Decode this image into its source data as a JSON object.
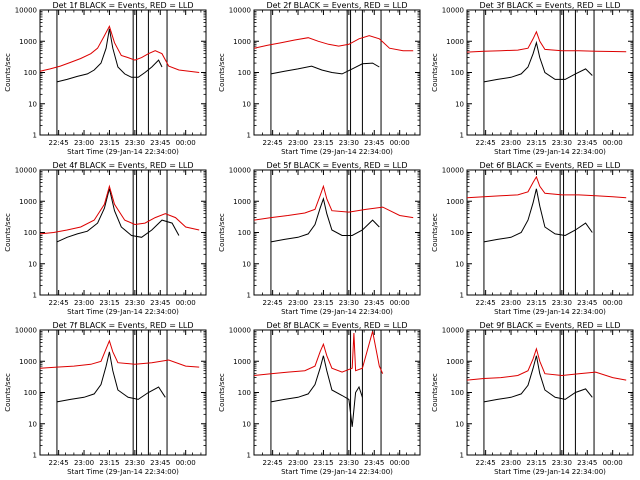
{
  "colors": {
    "events": "#000000",
    "lld": "#dd0000",
    "axes": "#000000"
  },
  "chart_data": [
    {
      "type": "line",
      "title": "Det 1f BLACK = Events, RED = LLD",
      "xlabel": "Start Time (29-Jan-14 22:34:00)",
      "ylabel": "Counts/sec",
      "yscale": "log",
      "ylim": [
        1,
        10000
      ],
      "xlim": [
        "22:34",
        "00:12"
      ],
      "xticks": [
        "22:45",
        "23:00",
        "23:15",
        "23:30",
        "23:45",
        "00:00"
      ],
      "yticks": [
        "1",
        "10",
        "100",
        "1000",
        "10000"
      ],
      "vlines": [
        "22:44",
        "23:29",
        "23:31",
        "23:38",
        "23:49"
      ],
      "series": [
        {
          "name": "Events",
          "color": "#000000",
          "x": [
            "22:44",
            "22:50",
            "22:56",
            "23:02",
            "23:06",
            "23:10",
            "23:13",
            "23:15",
            "23:17",
            "23:20",
            "23:24",
            "23:28",
            "23:32",
            "23:36",
            "23:40",
            "23:44",
            "23:46"
          ],
          "y": [
            50,
            60,
            75,
            90,
            120,
            200,
            600,
            2500,
            600,
            150,
            90,
            70,
            70,
            100,
            150,
            250,
            150
          ]
        },
        {
          "name": "LLD",
          "color": "#dd0000",
          "x": [
            "22:34",
            "22:40",
            "22:46",
            "22:52",
            "22:58",
            "23:04",
            "23:08",
            "23:12",
            "23:15",
            "23:18",
            "23:22",
            "23:26",
            "23:30",
            "23:34",
            "23:38",
            "23:42",
            "23:46",
            "23:50",
            "23:56",
            "00:02",
            "00:08"
          ],
          "y": [
            110,
            130,
            160,
            210,
            280,
            400,
            600,
            1500,
            3000,
            900,
            350,
            300,
            250,
            300,
            400,
            500,
            400,
            160,
            120,
            110,
            100
          ]
        }
      ]
    },
    {
      "type": "line",
      "title": "Det 2f BLACK = Events, RED = LLD",
      "xlabel": "Start Time (29-Jan-14 22:34:00)",
      "ylabel": "Counts/sec",
      "yscale": "log",
      "ylim": [
        1,
        10000
      ],
      "xlim": [
        "22:34",
        "00:12"
      ],
      "xticks": [
        "22:45",
        "23:00",
        "23:15",
        "23:30",
        "23:45",
        "00:00"
      ],
      "yticks": [
        "1",
        "10",
        "100",
        "1000",
        "10000"
      ],
      "vlines": [
        "22:44",
        "23:29",
        "23:31",
        "23:38",
        "23:49"
      ],
      "series": [
        {
          "name": "Events",
          "color": "#000000",
          "x": [
            "22:44",
            "22:52",
            "23:00",
            "23:08",
            "23:14",
            "23:20",
            "23:26",
            "23:32",
            "23:38",
            "23:44",
            "23:48"
          ],
          "y": [
            90,
            110,
            130,
            160,
            120,
            100,
            90,
            130,
            190,
            200,
            150
          ]
        },
        {
          "name": "LLD",
          "color": "#dd0000",
          "x": [
            "22:34",
            "22:42",
            "22:50",
            "22:58",
            "23:06",
            "23:12",
            "23:18",
            "23:24",
            "23:30",
            "23:36",
            "23:42",
            "23:48",
            "23:54",
            "00:02",
            "00:08"
          ],
          "y": [
            600,
            750,
            900,
            1100,
            1300,
            1000,
            800,
            700,
            800,
            1200,
            1500,
            1200,
            600,
            500,
            500
          ]
        }
      ]
    },
    {
      "type": "line",
      "title": "Det 3f BLACK = Events, RED = LLD",
      "xlabel": "Start Time (29-Jan-14 22:34:00)",
      "ylabel": "Counts/sec",
      "yscale": "log",
      "ylim": [
        1,
        10000
      ],
      "xlim": [
        "22:34",
        "00:12"
      ],
      "xticks": [
        "22:45",
        "23:00",
        "23:15",
        "23:30",
        "23:45",
        "00:00"
      ],
      "yticks": [
        "1",
        "10",
        "100",
        "1000",
        "10000"
      ],
      "vlines": [
        "22:44",
        "23:29",
        "23:31",
        "23:38",
        "23:49"
      ],
      "series": [
        {
          "name": "Events",
          "color": "#000000",
          "x": [
            "22:44",
            "22:52",
            "23:00",
            "23:06",
            "23:10",
            "23:13",
            "23:15",
            "23:17",
            "23:20",
            "23:26",
            "23:32",
            "23:38",
            "23:44",
            "23:48"
          ],
          "y": [
            50,
            60,
            70,
            90,
            150,
            400,
            900,
            300,
            100,
            60,
            60,
            90,
            130,
            80
          ]
        },
        {
          "name": "LLD",
          "color": "#dd0000",
          "x": [
            "22:34",
            "22:44",
            "22:54",
            "23:04",
            "23:10",
            "23:13",
            "23:15",
            "23:17",
            "23:20",
            "23:30",
            "23:40",
            "23:50",
            "00:00",
            "00:08"
          ],
          "y": [
            450,
            480,
            500,
            520,
            600,
            1200,
            2000,
            1000,
            550,
            500,
            500,
            480,
            470,
            460
          ]
        }
      ]
    },
    {
      "type": "line",
      "title": "Det 4f BLACK = Events, RED = LLD",
      "xlabel": "Start Time (29-Jan-14 22:34:00)",
      "ylabel": "Counts/sec",
      "yscale": "log",
      "ylim": [
        1,
        10000
      ],
      "xlim": [
        "22:34",
        "00:12"
      ],
      "xticks": [
        "22:45",
        "23:00",
        "23:15",
        "23:30",
        "23:45",
        "00:00"
      ],
      "yticks": [
        "1",
        "10",
        "100",
        "1000",
        "10000"
      ],
      "vlines": [
        "22:44",
        "23:29",
        "23:31",
        "23:38",
        "23:49"
      ],
      "series": [
        {
          "name": "Events",
          "color": "#000000",
          "x": [
            "22:44",
            "22:50",
            "22:56",
            "23:02",
            "23:08",
            "23:12",
            "23:15",
            "23:18",
            "23:22",
            "23:28",
            "23:34",
            "23:40",
            "23:46",
            "23:52",
            "23:56"
          ],
          "y": [
            50,
            70,
            90,
            110,
            200,
            600,
            2500,
            500,
            150,
            80,
            70,
            120,
            250,
            200,
            80
          ]
        },
        {
          "name": "LLD",
          "color": "#dd0000",
          "x": [
            "22:34",
            "22:42",
            "22:50",
            "22:58",
            "23:06",
            "23:12",
            "23:15",
            "23:18",
            "23:24",
            "23:30",
            "23:36",
            "23:42",
            "23:48",
            "23:54",
            "00:00",
            "00:08"
          ],
          "y": [
            90,
            100,
            120,
            150,
            250,
            800,
            3000,
            800,
            250,
            180,
            200,
            300,
            400,
            300,
            150,
            120
          ]
        }
      ]
    },
    {
      "type": "line",
      "title": "Det 5f BLACK = Events, RED = LLD",
      "xlabel": "Start Time (29-Jan-14 22:34:00)",
      "ylabel": "Counts/sec",
      "yscale": "log",
      "ylim": [
        1,
        10000
      ],
      "xlim": [
        "22:34",
        "00:12"
      ],
      "xticks": [
        "22:45",
        "23:00",
        "23:15",
        "23:30",
        "23:45",
        "00:00"
      ],
      "yticks": [
        "1",
        "10",
        "100",
        "1000",
        "10000"
      ],
      "vlines": [
        "22:44",
        "23:29",
        "23:31",
        "23:38",
        "23:49"
      ],
      "series": [
        {
          "name": "Events",
          "color": "#000000",
          "x": [
            "22:44",
            "22:52",
            "23:00",
            "23:06",
            "23:10",
            "23:13",
            "23:15",
            "23:17",
            "23:20",
            "23:26",
            "23:32",
            "23:38",
            "23:44",
            "23:48"
          ],
          "y": [
            50,
            60,
            70,
            90,
            180,
            600,
            1200,
            400,
            120,
            80,
            80,
            120,
            250,
            150
          ]
        },
        {
          "name": "LLD",
          "color": "#dd0000",
          "x": [
            "22:34",
            "22:44",
            "22:54",
            "23:04",
            "23:10",
            "23:13",
            "23:15",
            "23:17",
            "23:20",
            "23:30",
            "23:40",
            "23:50",
            "00:00",
            "00:08"
          ],
          "y": [
            250,
            300,
            350,
            420,
            550,
            1500,
            3000,
            1200,
            500,
            450,
            550,
            650,
            350,
            300
          ]
        }
      ]
    },
    {
      "type": "line",
      "title": "Det 6f BLACK = Events, RED = LLD",
      "xlabel": "Start Time (29-Jan-14 22:34:00)",
      "ylabel": "Counts/sec",
      "yscale": "log",
      "ylim": [
        1,
        10000
      ],
      "xlim": [
        "22:34",
        "00:12"
      ],
      "xticks": [
        "22:45",
        "23:00",
        "23:15",
        "23:30",
        "23:45",
        "00:00"
      ],
      "yticks": [
        "1",
        "10",
        "100",
        "1000",
        "10000"
      ],
      "vlines": [
        "22:44",
        "23:29",
        "23:31",
        "23:38",
        "23:49"
      ],
      "series": [
        {
          "name": "Events",
          "color": "#000000",
          "x": [
            "22:44",
            "22:52",
            "23:00",
            "23:06",
            "23:10",
            "23:13",
            "23:15",
            "23:17",
            "23:20",
            "23:26",
            "23:32",
            "23:38",
            "23:44",
            "23:48"
          ],
          "y": [
            50,
            60,
            70,
            100,
            250,
            900,
            2500,
            700,
            150,
            90,
            80,
            120,
            200,
            100
          ]
        },
        {
          "name": "LLD",
          "color": "#dd0000",
          "x": [
            "22:34",
            "22:44",
            "22:54",
            "23:04",
            "23:10",
            "23:13",
            "23:15",
            "23:17",
            "23:20",
            "23:30",
            "23:40",
            "23:50",
            "00:00",
            "00:08"
          ],
          "y": [
            1300,
            1400,
            1500,
            1600,
            2000,
            4000,
            6000,
            3000,
            1800,
            1600,
            1600,
            1500,
            1400,
            1300
          ]
        }
      ]
    },
    {
      "type": "line",
      "title": "Det 7f BLACK = Events, RED = LLD",
      "xlabel": "Start Time (29-Jan-14 22:34:00)",
      "ylabel": "Counts/sec",
      "yscale": "log",
      "ylim": [
        1,
        10000
      ],
      "xlim": [
        "22:34",
        "00:12"
      ],
      "xticks": [
        "22:45",
        "23:00",
        "23:15",
        "23:30",
        "23:45",
        "00:00"
      ],
      "yticks": [
        "1",
        "10",
        "100",
        "1000",
        "10000"
      ],
      "vlines": [
        "22:44",
        "23:29",
        "23:31",
        "23:38",
        "23:49"
      ],
      "series": [
        {
          "name": "Events",
          "color": "#000000",
          "x": [
            "22:44",
            "22:52",
            "23:00",
            "23:06",
            "23:10",
            "23:13",
            "23:15",
            "23:17",
            "23:20",
            "23:26",
            "23:32",
            "23:38",
            "23:44",
            "23:48"
          ],
          "y": [
            50,
            60,
            70,
            90,
            180,
            700,
            2000,
            500,
            120,
            70,
            60,
            100,
            150,
            70
          ]
        },
        {
          "name": "LLD",
          "color": "#dd0000",
          "x": [
            "22:34",
            "22:44",
            "22:54",
            "23:04",
            "23:10",
            "23:13",
            "23:15",
            "23:17",
            "23:20",
            "23:30",
            "23:40",
            "23:50",
            "00:00",
            "00:08"
          ],
          "y": [
            600,
            650,
            700,
            800,
            1000,
            2500,
            4500,
            2000,
            900,
            800,
            900,
            1100,
            700,
            650
          ]
        }
      ]
    },
    {
      "type": "line",
      "title": "Det 8f BLACK = Events, RED = LLD",
      "xlabel": "Start Time (29-Jan-14 22:34:00)",
      "ylabel": "Counts/sec",
      "yscale": "log",
      "ylim": [
        1,
        10000
      ],
      "xlim": [
        "22:34",
        "00:12"
      ],
      "xticks": [
        "22:45",
        "23:00",
        "23:15",
        "23:30",
        "23:45",
        "00:00"
      ],
      "yticks": [
        "1",
        "10",
        "100",
        "1000",
        "10000"
      ],
      "vlines": [
        "22:44",
        "23:29",
        "23:31",
        "23:38",
        "23:49"
      ],
      "series": [
        {
          "name": "Events",
          "color": "#000000",
          "x": [
            "22:44",
            "22:52",
            "23:00",
            "23:06",
            "23:10",
            "23:13",
            "23:15",
            "23:17",
            "23:20",
            "23:26",
            "23:30",
            "23:32",
            "23:34",
            "23:36",
            "23:38"
          ],
          "y": [
            50,
            60,
            70,
            90,
            180,
            600,
            1500,
            500,
            120,
            80,
            60,
            8,
            100,
            150,
            70
          ]
        },
        {
          "name": "LLD",
          "color": "#dd0000",
          "x": [
            "22:34",
            "22:44",
            "22:54",
            "23:04",
            "23:10",
            "23:13",
            "23:15",
            "23:17",
            "23:20",
            "23:26",
            "23:32",
            "23:33",
            "23:34",
            "23:38",
            "23:44",
            "23:48",
            "23:50"
          ],
          "y": [
            350,
            400,
            450,
            500,
            700,
            2000,
            3500,
            1500,
            600,
            450,
            600,
            8000,
            500,
            600,
            9000,
            700,
            400
          ]
        }
      ]
    },
    {
      "type": "line",
      "title": "Det 9f BLACK = Events, RED = LLD",
      "xlabel": "Start Time (29-Jan-14 22:34:00)",
      "ylabel": "Counts/sec",
      "yscale": "log",
      "ylim": [
        1,
        10000
      ],
      "xlim": [
        "22:34",
        "00:12"
      ],
      "xticks": [
        "22:45",
        "23:00",
        "23:15",
        "23:30",
        "23:45",
        "00:00"
      ],
      "yticks": [
        "1",
        "10",
        "100",
        "1000",
        "10000"
      ],
      "vlines": [
        "22:44",
        "23:29",
        "23:31",
        "23:38",
        "23:49"
      ],
      "series": [
        {
          "name": "Events",
          "color": "#000000",
          "x": [
            "22:44",
            "22:52",
            "23:00",
            "23:06",
            "23:10",
            "23:13",
            "23:15",
            "23:17",
            "23:20",
            "23:26",
            "23:32",
            "23:38",
            "23:44",
            "23:48"
          ],
          "y": [
            50,
            60,
            70,
            90,
            170,
            600,
            1500,
            400,
            120,
            70,
            60,
            100,
            130,
            70
          ]
        },
        {
          "name": "LLD",
          "color": "#dd0000",
          "x": [
            "22:34",
            "22:44",
            "22:54",
            "23:04",
            "23:10",
            "23:13",
            "23:15",
            "23:17",
            "23:20",
            "23:30",
            "23:40",
            "23:50",
            "00:00",
            "00:08"
          ],
          "y": [
            250,
            280,
            300,
            350,
            500,
            1200,
            2500,
            1000,
            400,
            350,
            400,
            450,
            300,
            250
          ]
        }
      ]
    }
  ]
}
